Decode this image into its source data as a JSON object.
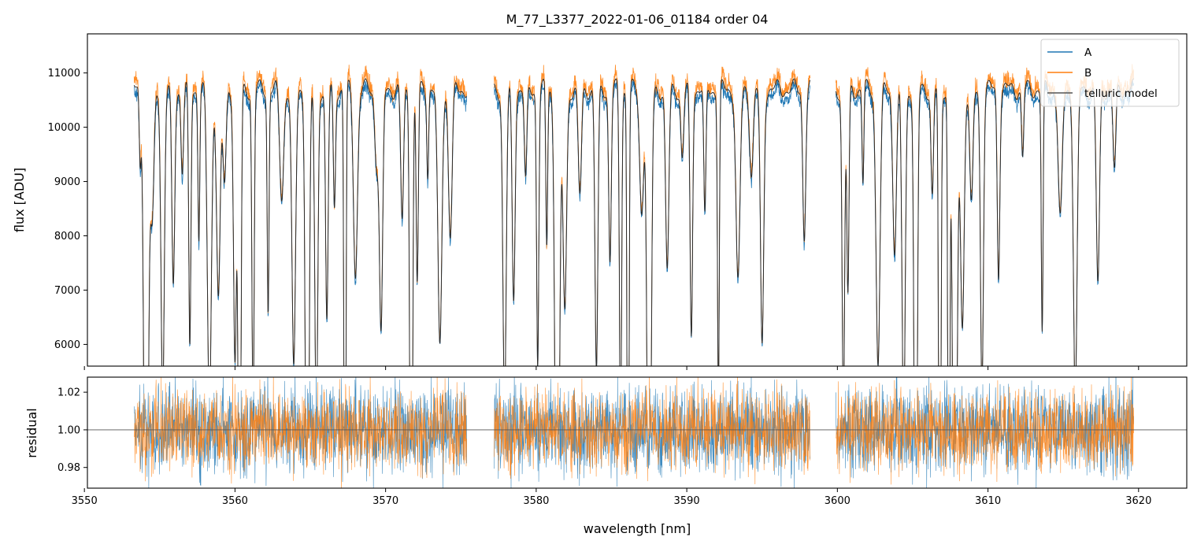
{
  "chart_data": {
    "type": "line",
    "title": "M_77_L3377_2022-01-06_01184  order 04",
    "xlabel": "wavelength [nm]",
    "xlim": [
      3550.2,
      3623.2
    ],
    "x_ticks": [
      3550,
      3560,
      3570,
      3580,
      3590,
      3600,
      3610,
      3620
    ],
    "x_tick_labels": [
      "3550",
      "3560",
      "3570",
      "3580",
      "3590",
      "3600",
      "3610",
      "3620"
    ],
    "colors": {
      "A": "#1f77b4",
      "B": "#ff7f0e",
      "model": "#2b2b2b"
    },
    "legend_position": "upper right",
    "segments": [
      [
        3553.3,
        3575.4
      ],
      [
        3577.2,
        3598.2
      ],
      [
        3599.9,
        3619.7
      ]
    ],
    "top_panel": {
      "ylabel": "flux [ADU]",
      "ylim": [
        5600,
        11720
      ],
      "y_ticks": [
        6000,
        7000,
        8000,
        9000,
        10000,
        11000
      ],
      "y_tick_labels": [
        "6000",
        "7000",
        "8000",
        "9000",
        "10000",
        "11000"
      ],
      "series": [
        {
          "name": "A",
          "continuum": 10600
        },
        {
          "name": "B",
          "continuum": 10800
        },
        {
          "name": "telluric model",
          "continuum": 10700
        }
      ],
      "absorption_lines_nm": [
        3553.7,
        3554.1,
        3554.5,
        3555.2,
        3555.9,
        3556.5,
        3557.0,
        3557.6,
        3558.3,
        3558.9,
        3559.3,
        3560.0,
        3560.3,
        3561.2,
        3562.2,
        3563.1,
        3563.9,
        3564.8,
        3565.4,
        3566.1,
        3566.6,
        3567.3,
        3568.0,
        3569.4,
        3569.7,
        3571.1,
        3571.7,
        3572.1,
        3572.8,
        3573.6,
        3574.3,
        3577.9,
        3578.5,
        3579.3,
        3580.1,
        3580.7,
        3581.4,
        3581.9,
        3582.9,
        3584.0,
        3584.9,
        3585.6,
        3586.1,
        3587.0,
        3587.5,
        3588.7,
        3589.7,
        3590.3,
        3591.2,
        3592.1,
        3593.4,
        3594.3,
        3595.0,
        3597.8,
        3600.4,
        3600.7,
        3601.7,
        3602.7,
        3603.8,
        3604.4,
        3605.2,
        3606.3,
        3606.8,
        3607.4,
        3607.8,
        3608.3,
        3608.9,
        3609.6,
        3610.7,
        3612.3,
        3613.6,
        3614.8,
        3615.8,
        3617.3,
        3618.4
      ],
      "lines_below_axis_nm": [
        3554.1,
        3560.3,
        3564.8,
        3567.3,
        3571.7,
        3581.4,
        3586.1,
        3587.5,
        3605.2,
        3606.8,
        3607.4,
        3607.8
      ]
    },
    "bottom_panel": {
      "ylabel": "residual",
      "ylim": [
        0.969,
        1.028
      ],
      "y_ticks": [
        0.98,
        1.0,
        1.02
      ],
      "y_tick_labels": [
        "0.98",
        "1.00",
        "1.02"
      ],
      "reference_line": 1.0,
      "series": [
        {
          "name": "A",
          "scatter": 0.012
        },
        {
          "name": "B",
          "scatter": 0.011
        }
      ]
    },
    "legend": [
      "A",
      "B",
      "telluric model"
    ]
  }
}
